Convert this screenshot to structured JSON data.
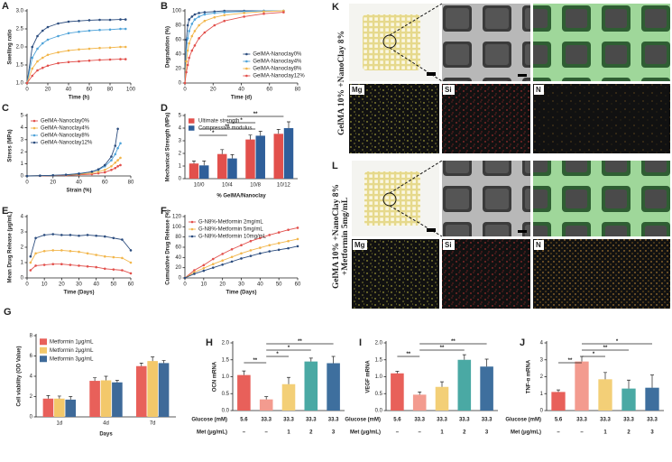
{
  "chart_data": [
    {
      "label": "A",
      "type": "line",
      "xlabel": "Time (h)",
      "ylabel": "Swelling ratio",
      "xlim": [
        0,
        100
      ],
      "xticks": [
        0,
        20,
        40,
        60,
        80,
        100
      ],
      "ylim": [
        1,
        3
      ],
      "yticks": [
        {
          "value": 1,
          "label": "1.0"
        },
        1.5,
        {
          "value": 2,
          "label": "2.0"
        },
        2.5,
        {
          "value": 3,
          "label": "3.0"
        }
      ],
      "x": [
        0,
        5,
        10,
        15,
        20,
        30,
        40,
        50,
        60,
        70,
        80,
        90,
        95
      ],
      "series": [
        {
          "color": "#2b4c7e",
          "values": [
            1.0,
            2.0,
            2.3,
            2.45,
            2.55,
            2.65,
            2.7,
            2.72,
            2.74,
            2.75,
            2.75,
            2.76,
            2.76
          ]
        },
        {
          "color": "#4fa3d9",
          "values": [
            1.0,
            1.7,
            1.95,
            2.1,
            2.2,
            2.3,
            2.38,
            2.42,
            2.45,
            2.47,
            2.48,
            2.5,
            2.5
          ]
        },
        {
          "color": "#f2b64b",
          "values": [
            1.0,
            1.4,
            1.6,
            1.7,
            1.78,
            1.85,
            1.9,
            1.93,
            1.95,
            1.97,
            1.98,
            2.0,
            2.0
          ]
        },
        {
          "color": "#e2504c",
          "values": [
            1.0,
            1.2,
            1.35,
            1.42,
            1.48,
            1.55,
            1.58,
            1.6,
            1.62,
            1.64,
            1.65,
            1.66,
            1.66
          ]
        }
      ]
    },
    {
      "label": "B",
      "type": "line",
      "xlabel": "Time (d)",
      "ylabel": "Degradation (%)",
      "xlim": [
        0,
        80
      ],
      "xticks": [
        0,
        20,
        40,
        60,
        80
      ],
      "ylim": [
        0,
        100
      ],
      "yticks": [
        0,
        20,
        40,
        60,
        80,
        100
      ],
      "x": [
        0,
        1,
        2,
        3,
        5,
        7,
        10,
        14,
        21,
        28,
        42,
        56,
        70
      ],
      "legend": "lower right",
      "series": [
        {
          "name": "GelMA-Nanoclay0%",
          "color": "#2b4c7e",
          "values": [
            0,
            60,
            80,
            88,
            92,
            95,
            97,
            98,
            99,
            100,
            100,
            100,
            100
          ]
        },
        {
          "name": "GelMA-Nanoclay4%",
          "color": "#4fa3d9",
          "values": [
            0,
            45,
            62,
            72,
            82,
            88,
            92,
            95,
            97,
            98,
            99,
            100,
            100
          ]
        },
        {
          "name": "GelMA-Nanoclay8%",
          "color": "#f2b64b",
          "values": [
            0,
            30,
            45,
            55,
            65,
            72,
            80,
            86,
            91,
            94,
            97,
            99,
            100
          ]
        },
        {
          "name": "GelMA-Nanoclay12%",
          "color": "#e2504c",
          "values": [
            0,
            15,
            25,
            35,
            45,
            52,
            62,
            70,
            80,
            86,
            92,
            96,
            98
          ]
        }
      ]
    },
    {
      "label": "C",
      "type": "line",
      "xlabel": "Strain (%)",
      "ylabel": "Stress (MPa)",
      "xlim": [
        0,
        80
      ],
      "xticks": [
        0,
        20,
        40,
        60,
        80
      ],
      "ylim": [
        0,
        5
      ],
      "yticks": [
        0,
        1,
        2,
        3,
        4,
        5
      ],
      "x": [
        0,
        10,
        20,
        30,
        40,
        50,
        55,
        60,
        65,
        68,
        70,
        72
      ],
      "legend": "upper left",
      "series": [
        {
          "name": "GelMA-Nanoclay0%",
          "color": "#e2504c",
          "values": [
            0,
            0.01,
            0.03,
            0.05,
            0.1,
            0.15,
            0.22,
            0.3,
            0.5,
            0.65,
            0.8,
            0.9
          ]
        },
        {
          "name": "GelMA-Nanoclay4%",
          "color": "#f2b64b",
          "values": [
            0,
            0.02,
            0.04,
            0.08,
            0.14,
            0.25,
            0.35,
            0.5,
            0.8,
            1.1,
            1.3,
            1.5
          ]
        },
        {
          "name": "GelMA-Nanoclay8%",
          "color": "#4fa3d9",
          "values": [
            0,
            0.02,
            0.05,
            0.1,
            0.2,
            0.35,
            0.5,
            0.8,
            1.3,
            1.8,
            2.3,
            2.7
          ]
        },
        {
          "name": "GelMA-Nanoclay12%",
          "color": "#2b4c7e",
          "values": [
            0,
            0.02,
            0.05,
            0.1,
            0.18,
            0.35,
            0.55,
            0.9,
            1.6,
            2.5,
            3.9,
            null
          ]
        }
      ]
    },
    {
      "label": "D",
      "type": "bar",
      "xlabel": "% GelMA/Nanoclay",
      "ylabel": "Mechanical Strength (MPa)",
      "categories": [
        "10/0",
        "10/4",
        "10/8",
        "10/12"
      ],
      "ylim": [
        0,
        5
      ],
      "yticks": [
        0,
        1,
        2,
        3,
        4,
        5
      ],
      "legend": "upper left",
      "series": [
        {
          "name": "Ultimate strength",
          "color": "#e2504c",
          "values": [
            1.2,
            1.95,
            3.1,
            3.55
          ],
          "errors": [
            0.2,
            0.35,
            0.35,
            0.35
          ]
        },
        {
          "name": "Compressive modulus",
          "color": "#2f5f9a",
          "values": [
            1.05,
            1.6,
            3.4,
            4.0
          ],
          "errors": [
            0.35,
            0.3,
            0.35,
            0.5
          ]
        }
      ],
      "annotations": [
        "*",
        "**",
        "*",
        "**"
      ]
    },
    {
      "label": "E",
      "type": "line",
      "xlabel": "Time (Days)",
      "ylabel": "Mean Drug Release (μg/mL)",
      "xlim": [
        0,
        60
      ],
      "xticks": [
        0,
        10,
        20,
        30,
        40,
        50,
        60
      ],
      "ylim": [
        0,
        4
      ],
      "yticks": [
        0,
        1,
        2,
        3,
        4
      ],
      "x": [
        2,
        5,
        10,
        15,
        20,
        25,
        30,
        35,
        40,
        45,
        50,
        55,
        60
      ],
      "series": [
        {
          "color": "#2b4c7e",
          "values": [
            1.4,
            2.6,
            2.8,
            2.85,
            2.8,
            2.8,
            2.75,
            2.8,
            2.75,
            2.7,
            2.6,
            2.5,
            1.8
          ]
        },
        {
          "color": "#f2b64b",
          "values": [
            1.0,
            1.6,
            1.75,
            1.8,
            1.8,
            1.75,
            1.7,
            1.6,
            1.5,
            1.4,
            1.35,
            1.3,
            1.0
          ]
        },
        {
          "color": "#e2504c",
          "values": [
            0.5,
            0.8,
            0.85,
            0.9,
            0.9,
            0.85,
            0.8,
            0.75,
            0.7,
            0.6,
            0.55,
            0.5,
            0.3
          ]
        }
      ]
    },
    {
      "label": "F",
      "type": "line",
      "xlabel": "Time (Days)",
      "ylabel": "Cumulative Drug Release (%)",
      "xlim": [
        0,
        60
      ],
      "xticks": [
        0,
        10,
        20,
        30,
        40,
        50,
        60
      ],
      "ylim": [
        0,
        120
      ],
      "yticks": [
        0,
        20,
        40,
        60,
        80,
        100,
        120
      ],
      "x": [
        0,
        5,
        10,
        15,
        20,
        25,
        30,
        35,
        40,
        45,
        50,
        55,
        60
      ],
      "legend": "upper left",
      "series": [
        {
          "name": "G-N8%-Metformin 2mg/mL",
          "color": "#e2504c",
          "values": [
            0,
            15,
            25,
            37,
            47,
            56,
            64,
            72,
            78,
            84,
            89,
            94,
            98
          ]
        },
        {
          "name": "G-N8%-Metformin 5mg/mL",
          "color": "#f2b64b",
          "values": [
            0,
            11,
            19,
            27,
            34,
            41,
            48,
            54,
            59,
            64,
            68,
            72,
            76
          ]
        },
        {
          "name": "G-N8%-Metformin 10mg/mL",
          "color": "#2b4c7e",
          "values": [
            0,
            8,
            14,
            20,
            26,
            32,
            38,
            43,
            48,
            52,
            55,
            58,
            62
          ]
        }
      ]
    },
    {
      "label": "G",
      "type": "bar",
      "xlabel": "Days",
      "ylabel": "Cell viability (OD Value)",
      "categories": [
        "1d",
        "4d",
        "7d"
      ],
      "ylim": [
        0,
        8
      ],
      "yticks": [
        0,
        2,
        4,
        6,
        8
      ],
      "legend": "upper left",
      "series": [
        {
          "name": "Metformin 1μg/mL",
          "color": "#e8605a",
          "values": [
            1.8,
            3.55,
            5.0
          ],
          "errors": [
            0.3,
            0.3,
            0.3
          ]
        },
        {
          "name": "Metformin 2μg/mL",
          "color": "#f3c86a",
          "values": [
            1.8,
            3.6,
            5.5
          ],
          "errors": [
            0.25,
            0.4,
            0.4
          ]
        },
        {
          "name": "Metformin 3μg/mL",
          "color": "#3e6a99",
          "values": [
            1.7,
            3.4,
            5.3
          ],
          "errors": [
            0.3,
            0.2,
            0.25
          ]
        }
      ]
    },
    {
      "label": "H",
      "type": "bar",
      "ylabel": "OCN mRNA",
      "ylim": [
        0,
        2
      ],
      "yticks": [
        {
          "value": 0,
          "label": "0.0"
        },
        0.5,
        {
          "value": 1,
          "label": "1.0"
        },
        1.5,
        {
          "value": 2,
          "label": "2.0"
        }
      ],
      "values": [
        1.05,
        0.33,
        0.78,
        1.45,
        1.4
      ],
      "errors": [
        0.12,
        0.08,
        0.2,
        0.1,
        0.2
      ],
      "colors": [
        "#e8605a",
        "#f39b8f",
        "#f3cf77",
        "#4aa9a4",
        "#3e6f9e"
      ],
      "rows": [
        {
          "label": "Glucose (mM)",
          "values": [
            "5.6",
            "33.3",
            "33.3",
            "33.3",
            "33.3"
          ]
        },
        {
          "label": "Met (μg/mL)",
          "values": [
            "–",
            "–",
            "1",
            "2",
            "3"
          ]
        }
      ],
      "annotations": [
        "**",
        "*",
        "*",
        "**"
      ]
    },
    {
      "label": "I",
      "type": "bar",
      "ylabel": "VEGF mRNA",
      "ylim": [
        0,
        2
      ],
      "yticks": [
        {
          "value": 0,
          "label": "0.0"
        },
        0.5,
        {
          "value": 1,
          "label": "1.0"
        },
        1.5,
        {
          "value": 2,
          "label": "2.0"
        }
      ],
      "values": [
        1.1,
        0.47,
        0.7,
        1.5,
        1.3
      ],
      "errors": [
        0.06,
        0.08,
        0.15,
        0.15,
        0.22
      ],
      "colors": [
        "#e8605a",
        "#f39b8f",
        "#f3cf77",
        "#4aa9a4",
        "#3e6f9e"
      ],
      "rows": [
        {
          "label": "Glucose (mM)",
          "values": [
            "5.6",
            "33.3",
            "33.3",
            "33.3",
            "33.3"
          ]
        },
        {
          "label": "Met (μg/mL)",
          "values": [
            "–",
            "–",
            "1",
            "2",
            "3"
          ]
        }
      ],
      "annotations": [
        "**",
        "**",
        "**"
      ]
    },
    {
      "label": "J",
      "type": "bar",
      "ylabel": "TNF-α mRNA",
      "ylim": [
        0,
        4
      ],
      "yticks": [
        0,
        1,
        2,
        3,
        4
      ],
      "values": [
        1.1,
        2.9,
        1.85,
        1.3,
        1.35
      ],
      "errors": [
        0.12,
        0.3,
        0.4,
        0.5,
        0.75
      ],
      "colors": [
        "#e8605a",
        "#f39b8f",
        "#f3cf77",
        "#4aa9a4",
        "#3e6f9e"
      ],
      "rows": [
        {
          "label": "Glucose (mM)",
          "values": [
            "5.6",
            "33.3",
            "33.3",
            "33.3",
            "33.3"
          ]
        },
        {
          "label": "Met (μg/mL)",
          "values": [
            "–",
            "–",
            "1",
            "2",
            "3"
          ]
        }
      ],
      "annotations": [
        "**",
        "*",
        "**",
        "*"
      ]
    }
  ],
  "image_panels": [
    {
      "label": "K",
      "caption": [
        "GelMA 10% +NanoClay 8%"
      ],
      "maps": [
        "Mg",
        "Si",
        "N"
      ]
    },
    {
      "label": "L",
      "caption": [
        "GelMA 10% +NanoClay 8%",
        "+Metformin 5mg/mL"
      ],
      "maps": [
        "Mg",
        "Si",
        "N"
      ]
    }
  ]
}
